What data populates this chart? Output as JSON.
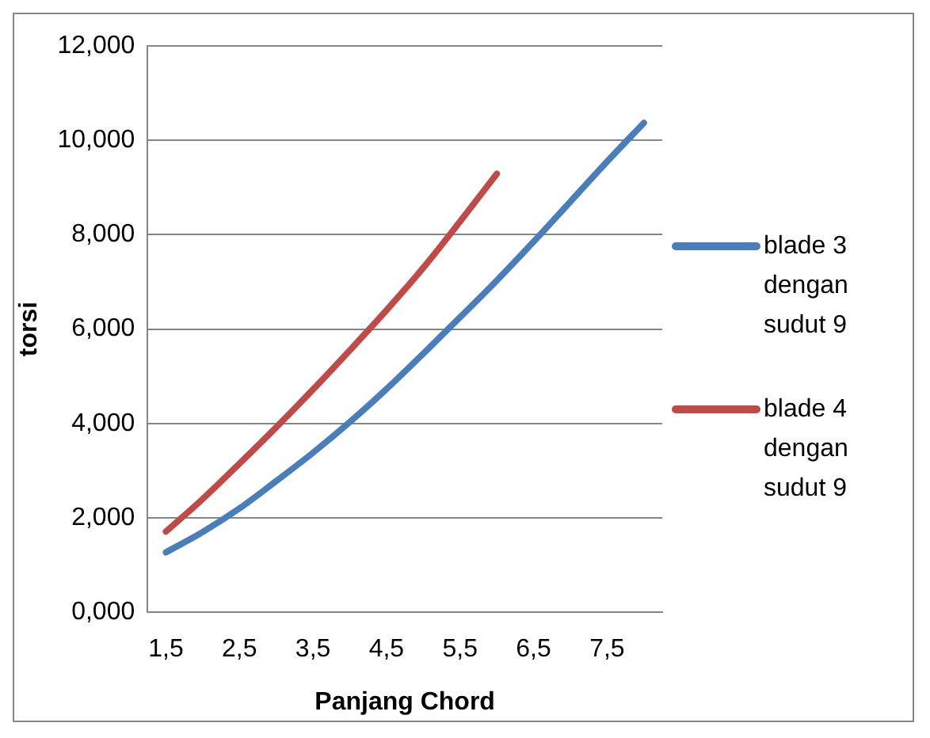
{
  "chart_data": {
    "type": "line",
    "xlabel": "Panjang Chord",
    "ylabel": "torsi",
    "categories": [
      "1,5",
      null,
      "2,5",
      null,
      "3,5",
      null,
      "4,5",
      null,
      "5,5",
      null,
      "6,5",
      null,
      "7,5",
      null
    ],
    "series": [
      {
        "name": "blade 3 dengan sudut 9",
        "color": "#4a7ebb",
        "values": [
          1.27,
          1.7,
          2.2,
          2.78,
          3.38,
          4.03,
          4.73,
          5.48,
          6.25,
          7.03,
          7.85,
          8.7,
          9.55,
          10.37
        ]
      },
      {
        "name": "blade 4 dengan sudut 9",
        "color": "#be4b48",
        "values": [
          1.71,
          2.4,
          3.15,
          3.92,
          4.72,
          5.55,
          6.4,
          7.3,
          8.28,
          9.29,
          null,
          null,
          null,
          null
        ]
      }
    ],
    "ylim": [
      0,
      12
    ],
    "yticks": [
      {
        "value": 0,
        "label": "0,000"
      },
      {
        "value": 2,
        "label": "2,000"
      },
      {
        "value": 4,
        "label": "4,000"
      },
      {
        "value": 6,
        "label": "6,000"
      },
      {
        "value": 8,
        "label": "8,000"
      },
      {
        "value": 10,
        "label": "10,000"
      },
      {
        "value": 12,
        "label": "12,000"
      }
    ],
    "grid": "y",
    "legend": "right",
    "marker": "none",
    "line_style": "solid"
  }
}
